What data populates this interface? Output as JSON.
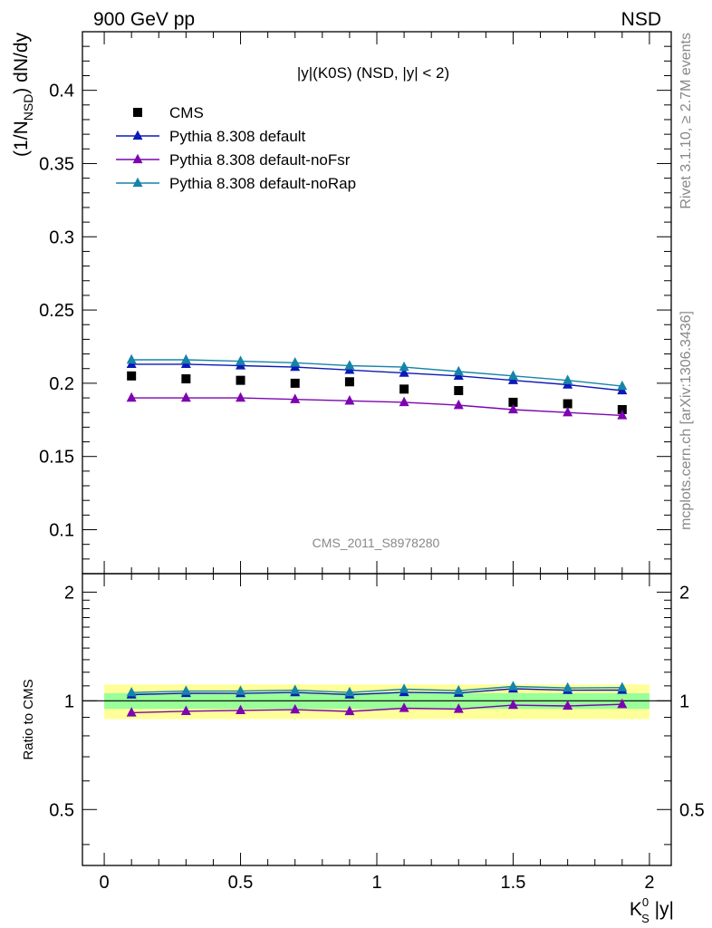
{
  "header": {
    "left": "900 GeV pp",
    "right": "NSD"
  },
  "side_labels": {
    "rivet": "Rivet 3.1.10, ≥ 2.7M events",
    "mcplots": "mcplots.cern.ch [arXiv:1306.3436]"
  },
  "chart_data": [
    {
      "type": "scatter",
      "title": "|y|(K0S) (NSD, |y| < 2)",
      "ylabel": "(1/N_NSD) dN/dy",
      "ylabel_parts": {
        "main": "(1/N",
        "sub": "NSD",
        "end": ") dN/dy"
      },
      "xlim": [
        -0.08,
        2.08
      ],
      "ylim": [
        0.07,
        0.44
      ],
      "yticks": [
        0.1,
        0.15,
        0.2,
        0.25,
        0.3,
        0.35,
        0.4
      ],
      "ytick_labels": [
        "0.1",
        "0.15",
        "0.2",
        "0.25",
        "0.3",
        "0.35",
        "0.4"
      ],
      "watermark": "CMS_2011_S8978280",
      "legend_position": "top-left",
      "x": [
        0.1,
        0.3,
        0.5,
        0.7,
        0.9,
        1.1,
        1.3,
        1.5,
        1.7,
        1.9
      ],
      "series": [
        {
          "name": "CMS",
          "marker": "square",
          "color": "#000000",
          "values": [
            0.205,
            0.203,
            0.202,
            0.2,
            0.201,
            0.196,
            0.195,
            0.187,
            0.186,
            0.182
          ]
        },
        {
          "name": "Pythia 8.308 default",
          "marker": "triangle",
          "color": "#0b1ab8",
          "values": [
            0.213,
            0.213,
            0.212,
            0.211,
            0.209,
            0.207,
            0.205,
            0.202,
            0.199,
            0.195
          ]
        },
        {
          "name": "Pythia 8.308 default-noFsr",
          "marker": "triangle",
          "color": "#7d05b0",
          "values": [
            0.19,
            0.19,
            0.19,
            0.189,
            0.188,
            0.187,
            0.185,
            0.182,
            0.18,
            0.178
          ]
        },
        {
          "name": "Pythia 8.308 default-noRap",
          "marker": "triangle",
          "color": "#1684a8",
          "values": [
            0.216,
            0.216,
            0.215,
            0.214,
            0.212,
            0.211,
            0.208,
            0.205,
            0.202,
            0.198
          ]
        }
      ]
    },
    {
      "type": "line",
      "ylabel": "Ratio to CMS",
      "xlabel": "K_S^0 |y|",
      "xlabel_parts": {
        "main": "K",
        "sup": "0",
        "sub": "S",
        "end": " |y|"
      },
      "xlim": [
        -0.08,
        2.08
      ],
      "ylim": [
        0.35,
        2.25
      ],
      "xticks": [
        0,
        0.5,
        1,
        1.5,
        2
      ],
      "xtick_labels": [
        "0",
        "0.5",
        "1",
        "1.5",
        "2"
      ],
      "yticks": [
        0.5,
        1,
        2
      ],
      "ytick_labels": [
        "0.5",
        "1",
        "2"
      ],
      "bands": [
        {
          "name": "outer",
          "color": "#ffff99",
          "x": [
            0.0,
            2.0
          ],
          "low": 0.89,
          "high": 1.11
        },
        {
          "name": "inner",
          "color": "#99ff99",
          "x": [
            0.0,
            2.0
          ],
          "low": 0.95,
          "high": 1.05
        }
      ],
      "x": [
        0.1,
        0.3,
        0.5,
        0.7,
        0.9,
        1.1,
        1.3,
        1.5,
        1.7,
        1.9
      ],
      "series": [
        {
          "name": "Pythia 8.308 default",
          "color": "#0b1ab8",
          "values": [
            1.04,
            1.05,
            1.049,
            1.055,
            1.04,
            1.056,
            1.051,
            1.08,
            1.07,
            1.071
          ]
        },
        {
          "name": "Pythia 8.308 default-noFsr",
          "color": "#7d05b0",
          "values": [
            0.927,
            0.936,
            0.941,
            0.945,
            0.935,
            0.954,
            0.949,
            0.973,
            0.968,
            0.978
          ]
        },
        {
          "name": "Pythia 8.308 default-noRap",
          "color": "#1684a8",
          "values": [
            1.054,
            1.064,
            1.064,
            1.07,
            1.055,
            1.077,
            1.067,
            1.096,
            1.086,
            1.088
          ]
        }
      ]
    }
  ]
}
